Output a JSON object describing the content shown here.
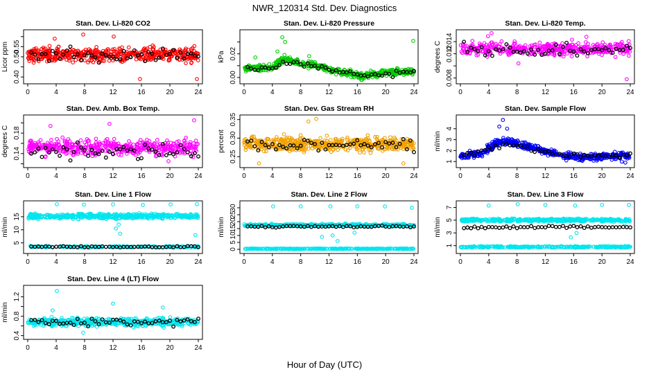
{
  "figure": {
    "title": "NWR_120314  Std. Dev. Diagnostics",
    "xlabel": "Hour of Day (UTC)"
  },
  "chart_data": [
    {
      "type": "scatter",
      "title": "Stan. Dev. Li-820 CO2",
      "ylabel": "Licor ppm",
      "xlim": [
        0,
        24
      ],
      "ylim": [
        0.38,
        0.62
      ],
      "xticks": [
        0,
        4,
        8,
        12,
        16,
        20,
        24
      ],
      "yticks": [
        0.4,
        0.45,
        0.5,
        0.55,
        0.6
      ],
      "ytick_labels": [
        "0.40",
        "",
        "0.50",
        "0.55",
        ""
      ],
      "color": "#ff0000",
      "bands": [
        {
          "center": 0.51,
          "spread": 0.03,
          "n": 480
        }
      ],
      "overlay": {
        "center": 0.51,
        "spread": 0.025
      },
      "outliers": [
        [
          7.8,
          0.61
        ],
        [
          3.8,
          0.59
        ],
        [
          15.8,
          0.39
        ],
        [
          23.8,
          0.39
        ],
        [
          12.1,
          0.6
        ]
      ]
    },
    {
      "type": "scatter",
      "title": "Stan. Dev. Li-820 Pressure",
      "ylabel": "kPa",
      "xlim": [
        0,
        24
      ],
      "ylim": [
        -0.003,
        0.038
      ],
      "xticks": [
        0,
        4,
        8,
        12,
        16,
        20,
        24
      ],
      "yticks": [
        0.0,
        0.01,
        0.02,
        0.03
      ],
      "ytick_labels": [
        "0.00",
        "",
        "0.02",
        ""
      ],
      "color": "#00cc00",
      "bands": [
        {
          "profile": [
            [
              0,
              0.0075
            ],
            [
              4,
              0.0085
            ],
            [
              5.5,
              0.016
            ],
            [
              8,
              0.012
            ],
            [
              11,
              0.009
            ],
            [
              14,
              0.004
            ],
            [
              17,
              0.001
            ],
            [
              20,
              0.004
            ],
            [
              24,
              0.005
            ]
          ],
          "spread": 0.0025,
          "n": 520
        }
      ],
      "overlay": {
        "profile": [
          [
            0,
            0.007
          ],
          [
            4,
            0.008
          ],
          [
            5.5,
            0.013
          ],
          [
            8,
            0.011
          ],
          [
            11,
            0.008
          ],
          [
            14,
            0.004
          ],
          [
            17,
            0.001
          ],
          [
            20,
            0.003
          ],
          [
            24,
            0.005
          ]
        ],
        "spread": 0.0015
      },
      "outliers": [
        [
          1.6,
          0.017
        ],
        [
          4.7,
          0.022
        ],
        [
          5.4,
          0.034
        ],
        [
          5.8,
          0.03
        ],
        [
          23.9,
          0.031
        ],
        [
          9.2,
          0.018
        ]
      ]
    },
    {
      "type": "scatter",
      "title": "Stan. Dev. Li-820 Temp.",
      "ylabel": "degrees C",
      "xlim": [
        0,
        24
      ],
      "ylim": [
        0.0075,
        0.0155
      ],
      "xticks": [
        0,
        4,
        8,
        12,
        16,
        20,
        24
      ],
      "yticks": [
        0.008,
        0.01,
        0.012,
        0.014
      ],
      "ytick_labels": [
        "0.008",
        "",
        "0.012",
        "0.014"
      ],
      "color": "#ff00ff",
      "bands": [
        {
          "center": 0.0128,
          "spread": 0.0009,
          "n": 470
        }
      ],
      "overlay": {
        "center": 0.0126,
        "spread": 0.0008
      },
      "outliers": [
        [
          4.4,
          0.0154
        ],
        [
          3.9,
          0.0149
        ],
        [
          23.5,
          0.0078
        ],
        [
          17.8,
          0.0148
        ],
        [
          8.2,
          0.0104
        ]
      ]
    },
    {
      "type": "scatter",
      "title": "Stan. Dev. Amb. Box Temp.",
      "ylabel": "degrees C",
      "xlim": [
        0,
        24
      ],
      "ylim": [
        0.118,
        0.21
      ],
      "xticks": [
        0,
        4,
        8,
        12,
        16,
        20,
        24
      ],
      "yticks": [
        0.12,
        0.14,
        0.16,
        0.18,
        0.2
      ],
      "ytick_labels": [
        "",
        "0.14",
        "",
        "0.18",
        ""
      ],
      "color": "#ff00ff",
      "bands": [
        {
          "center": 0.152,
          "spread": 0.013,
          "n": 470
        }
      ],
      "overlay": {
        "center": 0.145,
        "spread": 0.01
      },
      "outliers": [
        [
          23.4,
          0.205
        ],
        [
          11.5,
          0.198
        ],
        [
          3.2,
          0.194
        ],
        [
          19.8,
          0.125
        ]
      ]
    },
    {
      "type": "scatter",
      "title": "Stan. Dev. Gas Stream RH",
      "ylabel": "percent",
      "xlim": [
        0,
        24
      ],
      "ylim": [
        0.228,
        0.355
      ],
      "xticks": [
        0,
        4,
        8,
        12,
        16,
        20,
        24
      ],
      "yticks": [
        0.25,
        0.3,
        0.35
      ],
      "ytick_labels": [
        "0.25",
        "0.30",
        "0.35"
      ],
      "color": "#f0a000",
      "bands": [
        {
          "center": 0.285,
          "spread": 0.017,
          "n": 520
        }
      ],
      "overlay": {
        "center": 0.28,
        "spread": 0.012
      },
      "outliers": [
        [
          10.2,
          0.352
        ],
        [
          9.1,
          0.345
        ],
        [
          2.1,
          0.232
        ],
        [
          22.5,
          0.232
        ]
      ]
    },
    {
      "type": "scatter",
      "title": "Stan. Dev. Sample Flow",
      "ylabel": "ml/min",
      "xlim": [
        0,
        24
      ],
      "ylim": [
        0.7,
        5.0
      ],
      "xticks": [
        0,
        4,
        8,
        12,
        16,
        20,
        24
      ],
      "yticks": [
        1,
        2,
        3,
        4
      ],
      "ytick_labels": [
        "1",
        "2",
        "3",
        "4"
      ],
      "color": "#0000ff",
      "bands": [
        {
          "profile": [
            [
              0,
              1.4
            ],
            [
              3,
              1.8
            ],
            [
              5,
              2.6
            ],
            [
              6.5,
              2.9
            ],
            [
              8,
              2.6
            ],
            [
              11,
              2.1
            ],
            [
              13,
              1.8
            ],
            [
              15,
              1.5
            ],
            [
              18,
              1.4
            ],
            [
              24,
              1.6
            ]
          ],
          "spread": 0.28,
          "n": 520
        }
      ],
      "overlay": {
        "profile": [
          [
            0,
            1.5
          ],
          [
            3,
            1.9
          ],
          [
            5,
            2.5
          ],
          [
            6.5,
            2.6
          ],
          [
            8,
            2.4
          ],
          [
            11,
            2.0
          ],
          [
            13,
            1.7
          ],
          [
            15,
            1.5
          ],
          [
            18,
            1.5
          ],
          [
            24,
            1.6
          ]
        ],
        "spread": 0.15
      },
      "outliers": [
        [
          6.0,
          4.8
        ],
        [
          5.5,
          4.2
        ],
        [
          6.6,
          4.0
        ],
        [
          23.3,
          0.9
        ],
        [
          22.8,
          1.0
        ]
      ]
    },
    {
      "type": "scatter",
      "title": "Stan. Dev. Line 1 Flow",
      "ylabel": "ml/min",
      "xlim": [
        0,
        24
      ],
      "ylim": [
        2.0,
        20.0
      ],
      "xticks": [
        0,
        4,
        8,
        12,
        16,
        20,
        24
      ],
      "yticks": [
        5,
        10,
        15
      ],
      "ytick_labels": [
        "5",
        "10",
        "15"
      ],
      "color": "#00e5ee",
      "bands": [
        {
          "center": 15.2,
          "spread": 0.8,
          "n": 480
        },
        {
          "center": 3.5,
          "spread": 0.25,
          "n": 180
        }
      ],
      "overlay": {
        "center": 3.5,
        "spread": 0.2
      },
      "outliers": [
        [
          4.1,
          19.8
        ],
        [
          7.9,
          19.6
        ],
        [
          12.0,
          19.7
        ],
        [
          16.2,
          19.5
        ],
        [
          20.1,
          19.7
        ],
        [
          23.8,
          19.8
        ],
        [
          12.4,
          10.5
        ],
        [
          13.0,
          8.5
        ],
        [
          12.8,
          12.0
        ],
        [
          23.6,
          8.0
        ]
      ]
    },
    {
      "type": "scatter",
      "title": "Stan. Dev. Line 2 Flow",
      "ylabel": "ml/min",
      "xlim": [
        0,
        24
      ],
      "ylim": [
        -1,
        33
      ],
      "xticks": [
        0,
        4,
        8,
        12,
        16,
        20,
        24
      ],
      "yticks": [
        0,
        5,
        10,
        15,
        20,
        25,
        30
      ],
      "ytick_labels": [
        "0",
        "5",
        "10",
        "15",
        "20",
        "25",
        "30"
      ],
      "color": "#00e5ee",
      "bands": [
        {
          "center": 17.5,
          "spread": 0.8,
          "n": 420
        },
        {
          "center": 0.4,
          "spread": 0.2,
          "n": 300
        }
      ],
      "overlay": {
        "center": 16.5,
        "spread": 0.4
      },
      "outliers": [
        [
          4.1,
          31
        ],
        [
          8.0,
          31
        ],
        [
          12.2,
          31
        ],
        [
          16.0,
          31
        ],
        [
          19.9,
          31
        ],
        [
          23.7,
          30
        ],
        [
          12.5,
          10
        ],
        [
          13.2,
          6
        ],
        [
          15.6,
          12
        ],
        [
          11.0,
          9
        ]
      ]
    },
    {
      "type": "scatter",
      "title": "Stan. Dev. Line 3 Flow",
      "ylabel": "ml/min",
      "xlim": [
        0,
        24
      ],
      "ylim": [
        0.2,
        7.6
      ],
      "xticks": [
        0,
        4,
        8,
        12,
        16,
        20,
        24
      ],
      "yticks": [
        1,
        3,
        5,
        7
      ],
      "ytick_labels": [
        "1",
        "3",
        "5",
        "7"
      ],
      "color": "#00e5ee",
      "bands": [
        {
          "center": 5.0,
          "spread": 0.2,
          "n": 420
        },
        {
          "center": 0.8,
          "spread": 0.1,
          "n": 280
        }
      ],
      "overlay": {
        "center": 3.9,
        "spread": 0.15
      },
      "outliers": [
        [
          4.0,
          7.3
        ],
        [
          8.1,
          7.5
        ],
        [
          12.0,
          7.4
        ],
        [
          16.2,
          7.3
        ],
        [
          20.0,
          7.4
        ],
        [
          23.8,
          7.4
        ],
        [
          15.6,
          2.3
        ],
        [
          16.4,
          3.0
        ],
        [
          23.2,
          4.5
        ]
      ]
    },
    {
      "type": "scatter",
      "title": "Stan. Dev. Line 4 (LT) Flow",
      "ylabel": "ml/min",
      "xlim": [
        0,
        24
      ],
      "ylim": [
        0.38,
        1.38
      ],
      "xticks": [
        0,
        4,
        8,
        12,
        16,
        20,
        24
      ],
      "yticks": [
        0.4,
        0.6,
        0.8,
        1.0,
        1.2
      ],
      "ytick_labels": [
        "0.4",
        "",
        "0.8",
        "",
        "1.2"
      ],
      "color": "#00e5ee",
      "bands": [
        {
          "center": 0.68,
          "spread": 0.07,
          "n": 480
        }
      ],
      "overlay": {
        "center": 0.68,
        "spread": 0.06
      },
      "outliers": [
        [
          4.1,
          1.32
        ],
        [
          12.0,
          1.06
        ],
        [
          19.0,
          0.98
        ],
        [
          3.5,
          0.92
        ],
        [
          7.8,
          0.46
        ]
      ]
    }
  ]
}
